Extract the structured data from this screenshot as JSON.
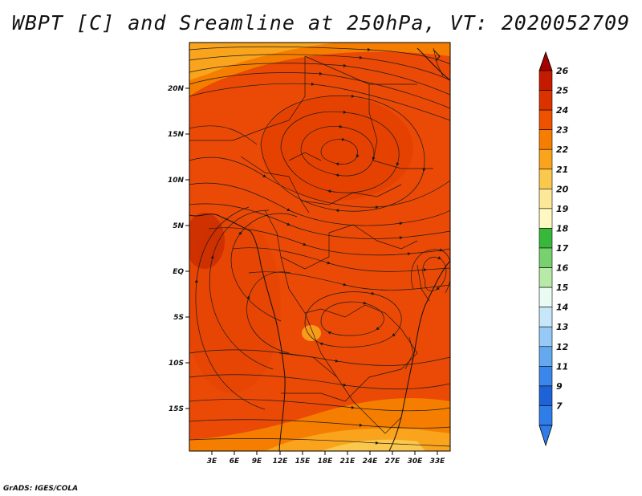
{
  "title": "WBPT [C] and Sreamline at 250hPa, VT: 2020052709",
  "footer": "GrADS: IGES/COLA",
  "map": {
    "lat_labels": [
      "20N",
      "15N",
      "10N",
      "5N",
      "EQ",
      "5S",
      "10S",
      "15S"
    ],
    "lon_labels": [
      "3E",
      "6E",
      "9E",
      "12E",
      "15E",
      "18E",
      "21E",
      "24E",
      "27E",
      "30E",
      "33E"
    ]
  },
  "colorbar": {
    "labels": [
      "26",
      "25",
      "24",
      "23",
      "22",
      "21",
      "20",
      "19",
      "18",
      "17",
      "16",
      "15",
      "14",
      "13",
      "12",
      "11",
      "9",
      "7"
    ],
    "colors": [
      "#a50000",
      "#c41a00",
      "#dc3200",
      "#ee5200",
      "#f57e00",
      "#f9a41c",
      "#fbc84e",
      "#fde89a",
      "#fff8c2",
      "#37b83a",
      "#76d16e",
      "#b6eaa6",
      "#eafbf4",
      "#c8e6fa",
      "#96c9f6",
      "#64a9f0",
      "#3a86ea",
      "#1d62d6",
      "#2f7de8"
    ]
  }
}
